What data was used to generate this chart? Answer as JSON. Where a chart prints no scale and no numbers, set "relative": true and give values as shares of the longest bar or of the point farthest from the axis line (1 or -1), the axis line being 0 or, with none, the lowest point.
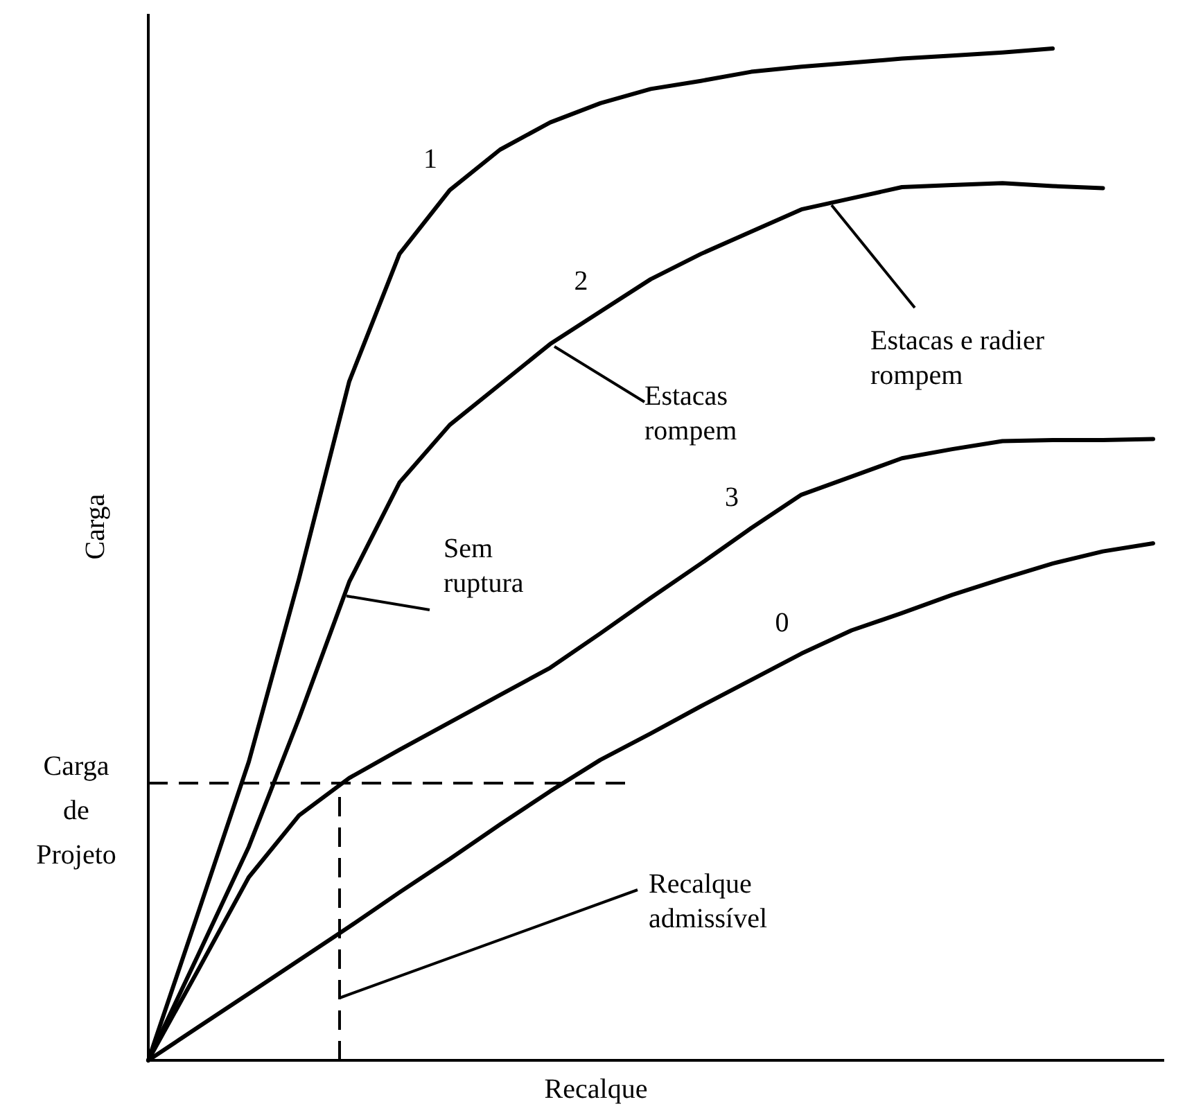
{
  "chart_data": {
    "type": "line",
    "relative": true,
    "xlabel": "Recalque",
    "ylabel": "Carga",
    "legend": false,
    "line_style": "solid",
    "categories": [
      null,
      null,
      null,
      null,
      null,
      null,
      null,
      null,
      null,
      null,
      null,
      null,
      null,
      null,
      null,
      null,
      null,
      null,
      null,
      null,
      null
    ],
    "series": [
      {
        "name": "1",
        "color": "#000000",
        "values": [
          0,
          0.147,
          0.295,
          0.476,
          0.671,
          0.797,
          0.86,
          0.9,
          0.927,
          0.946,
          0.96,
          0.968,
          0.977,
          0.982,
          0.986,
          0.99,
          0.993,
          0.996,
          1,
          null,
          null
        ]
      },
      {
        "name": "2",
        "color": "#000000",
        "values": [
          0,
          0.105,
          0.211,
          0.338,
          0.473,
          0.571,
          0.628,
          0.668,
          0.708,
          0.74,
          0.772,
          0.797,
          0.819,
          0.841,
          0.852,
          0.863,
          0.865,
          0.867,
          0.864,
          0.862,
          null
        ]
      },
      {
        "name": "3",
        "color": "#000000",
        "values": [
          0,
          0.09,
          0.181,
          0.242,
          0.279,
          0.307,
          0.334,
          0.361,
          0.388,
          0.422,
          0.457,
          0.491,
          0.526,
          0.559,
          0.577,
          0.595,
          0.604,
          0.612,
          0.613,
          0.613,
          0.614
        ]
      },
      {
        "name": "0",
        "color": "#000000",
        "values": [
          0,
          0.033,
          0.066,
          0.099,
          0.132,
          0.166,
          0.199,
          0.233,
          0.266,
          0.297,
          0.323,
          0.35,
          0.376,
          0.402,
          0.425,
          0.442,
          0.46,
          0.476,
          0.491,
          0.503,
          0.511
        ]
      }
    ],
    "ref_lines": [
      {
        "axis": "y",
        "value": 0.274,
        "label": "Carga de Projeto",
        "line_style": "dashed",
        "color": "#000000"
      }
    ],
    "annotations": [
      "Sem ruptura",
      "Estacas rompem",
      "Estacas e radier rompem",
      "Recalque admissível"
    ]
  }
}
